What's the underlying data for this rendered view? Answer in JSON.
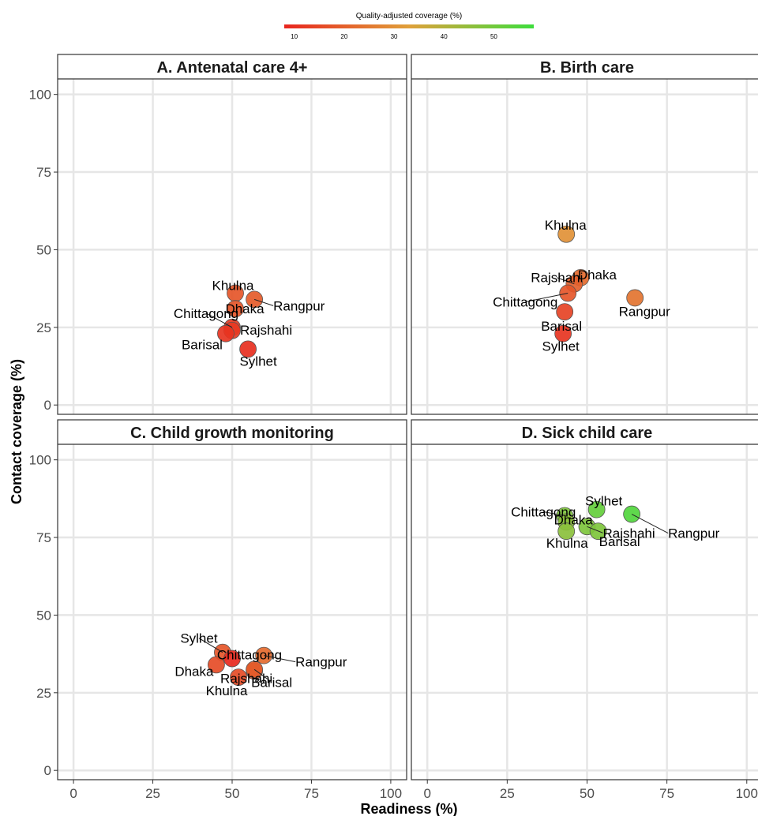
{
  "chart_data": {
    "type": "scatter",
    "xlabel": "Readiness (%)",
    "ylabel": "Contact coverage (%)",
    "xlim": [
      -5,
      105
    ],
    "ylim": [
      -3,
      105
    ],
    "xticks": [
      0,
      25,
      50,
      75,
      100
    ],
    "yticks": [
      0,
      25,
      50,
      75,
      100
    ],
    "grid": true,
    "legend": {
      "title": "Quality-adjusted coverage (%)",
      "position": "top",
      "ticks": [
        10,
        20,
        30,
        40,
        50
      ],
      "min": 8,
      "max": 58,
      "colors": [
        "#e8251e",
        "#e0a03a",
        "#3ddd3d"
      ]
    },
    "panels": [
      {
        "title": "A. Antenatal care 4+",
        "points": [
          {
            "label": "Khulna",
            "x": 51,
            "y": 36,
            "q": 18
          },
          {
            "label": "Dhaka",
            "x": 51,
            "y": 31,
            "q": 18
          },
          {
            "label": "Rangpur",
            "x": 57,
            "y": 34,
            "q": 19
          },
          {
            "label": "Chittagong",
            "x": 50,
            "y": 25,
            "q": 12
          },
          {
            "label": "Rajshahi",
            "x": 50,
            "y": 24,
            "q": 12
          },
          {
            "label": "Barisal",
            "x": 48,
            "y": 23,
            "q": 11
          },
          {
            "label": "Sylhet",
            "x": 55,
            "y": 18,
            "q": 10
          }
        ]
      },
      {
        "title": "B. Birth care",
        "points": [
          {
            "label": "Khulna",
            "x": 43.5,
            "y": 55,
            "q": 30
          },
          {
            "label": "Dhaka",
            "x": 48,
            "y": 41,
            "q": 22
          },
          {
            "label": "Rajshahi",
            "x": 46,
            "y": 39,
            "q": 20
          },
          {
            "label": "Chittagong",
            "x": 44,
            "y": 36,
            "q": 18
          },
          {
            "label": "Barisal",
            "x": 43,
            "y": 30,
            "q": 14
          },
          {
            "label": "Sylhet",
            "x": 42.5,
            "y": 23,
            "q": 11
          },
          {
            "label": "Rangpur",
            "x": 65,
            "y": 34.5,
            "q": 24
          }
        ]
      },
      {
        "title": "C. Child growth monitoring",
        "points": [
          {
            "label": "Sylhet",
            "x": 47,
            "y": 38,
            "q": 18
          },
          {
            "label": "Chittagong",
            "x": 50,
            "y": 36,
            "q": 9
          },
          {
            "label": "Dhaka",
            "x": 45,
            "y": 34,
            "q": 16
          },
          {
            "label": "Rajshahi",
            "x": 57,
            "y": 32,
            "q": 19
          },
          {
            "label": "Khulna",
            "x": 52,
            "y": 30,
            "q": 16
          },
          {
            "label": "Barisal",
            "x": 57,
            "y": 32.5,
            "q": 19
          },
          {
            "label": "Rangpur",
            "x": 60,
            "y": 37,
            "q": 22
          }
        ]
      },
      {
        "title": "D. Sick child care",
        "points": [
          {
            "label": "Chittagong",
            "x": 43,
            "y": 82,
            "q": 48
          },
          {
            "label": "Sylhet",
            "x": 53,
            "y": 84,
            "q": 52
          },
          {
            "label": "Dhaka",
            "x": 43.5,
            "y": 80,
            "q": 46
          },
          {
            "label": "Rajshahi",
            "x": 50,
            "y": 78.5,
            "q": 48
          },
          {
            "label": "Khulna",
            "x": 43.5,
            "y": 77,
            "q": 46
          },
          {
            "label": "Barisal",
            "x": 53.5,
            "y": 77,
            "q": 48
          },
          {
            "label": "Rangpur",
            "x": 64,
            "y": 82.5,
            "q": 55
          }
        ]
      }
    ]
  }
}
